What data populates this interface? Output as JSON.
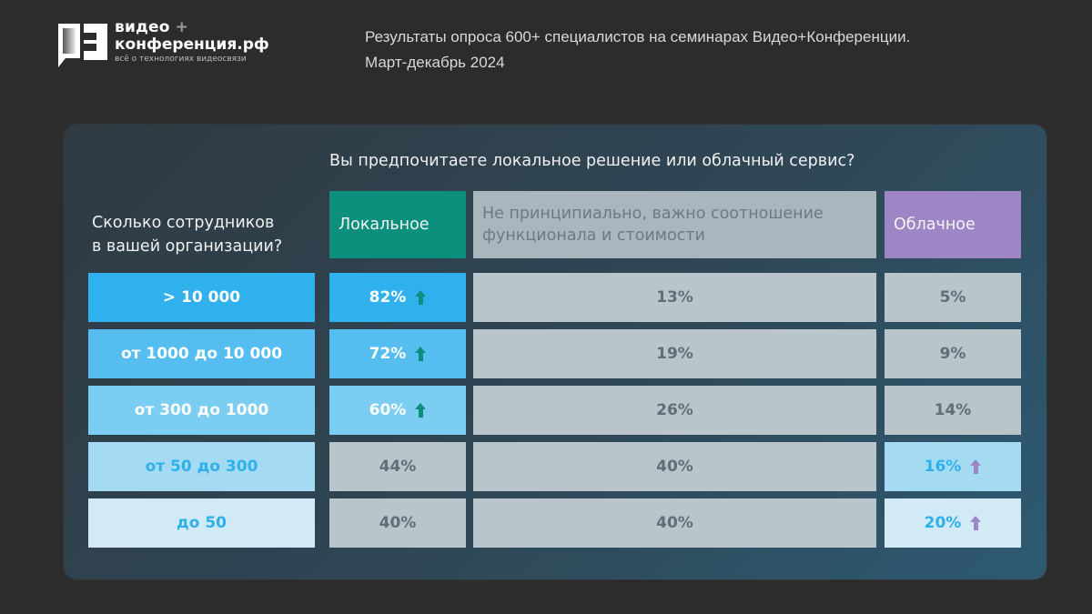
{
  "logo": {
    "line1": "видео",
    "plus": "+",
    "line2": "конференция.рф",
    "tagline": "всё о технологиях видеосвязи"
  },
  "header": {
    "line1": "Результаты опроса 600+ специалистов на семинарах Видео+Конференции.",
    "line2": "Март-декабрь 2024"
  },
  "table": {
    "question": "Вы предпочитаете локальное решение или облачный сервис?",
    "row_question_line1": "Сколько сотрудников",
    "row_question_line2": "в вашей организации?",
    "columns": {
      "local": "Локальное",
      "neutral_line1": "Не принципиально, важно соотношение",
      "neutral_line2": "функционала и стоимости",
      "cloud": "Облачное"
    },
    "rows": [
      {
        "label": "> 10 000",
        "local": "82%",
        "neutral": "13%",
        "cloud": "5%"
      },
      {
        "label": "от 1000 до 10 000",
        "local": "72%",
        "neutral": "19%",
        "cloud": "9%"
      },
      {
        "label": "от 300 до 1000",
        "local": "60%",
        "neutral": "26%",
        "cloud": "14%"
      },
      {
        "label": "от 50 до 300",
        "local": "44%",
        "neutral": "40%",
        "cloud": "16%"
      },
      {
        "label": "до 50",
        "local": "40%",
        "neutral": "40%",
        "cloud": "20%"
      }
    ]
  },
  "colors": {
    "local_header": "#0d8f7e",
    "cloud_header": "#9d85c6",
    "neutral": "#b9c5cb",
    "arrow_local": "#0d8f7e",
    "arrow_cloud": "#9d85c6",
    "row_blues": [
      "#30b0ec",
      "#55bdef",
      "#7ccdf2",
      "#a4dbf3",
      "#d1eaf5"
    ]
  }
}
